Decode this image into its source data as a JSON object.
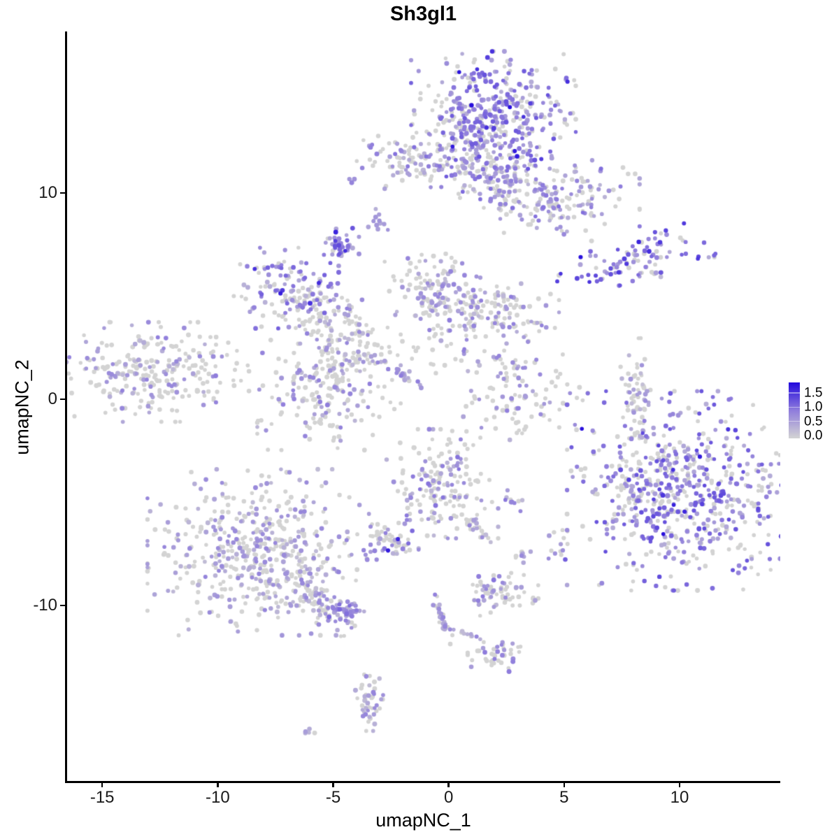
{
  "title": "Sh3gl1",
  "chart_data": {
    "type": "scatter",
    "title": "Sh3gl1",
    "xlabel": "umapNC_1",
    "ylabel": "umapNC_2",
    "xlim": [
      -16.55,
      14.36
    ],
    "ylim": [
      -18.54,
      17.83
    ],
    "x_ticks": [
      "-15",
      "-10",
      "-5",
      "0",
      "5",
      "10"
    ],
    "x_tick_values": [
      -15,
      -10,
      -5,
      0,
      5,
      10
    ],
    "y_ticks": [
      "10",
      "0",
      "-10"
    ],
    "y_tick_values": [
      10,
      0,
      -10
    ],
    "grid": false,
    "background": "#ffffff",
    "point_radius": 3,
    "seed": 42,
    "legend": {
      "position": "right",
      "labels": [
        "1.5",
        "1.0",
        "0.5",
        "0.0"
      ],
      "values": [
        1.5,
        1.0,
        0.5,
        0.0
      ],
      "bar_range": [
        -0.1,
        1.87
      ]
    },
    "colorscale": {
      "low": "#D3D3D3",
      "mid": "#8F7DDC",
      "high": "#2209DD",
      "max": 1.75
    },
    "clusters": [
      {
        "name": "top-main-core",
        "x": 1.94,
        "y": 13.76,
        "sx": 1.55,
        "sy": 1.35,
        "n": 420,
        "frac_expr": 0.68,
        "mean_expr": 0.75
      },
      {
        "name": "top-main-neck",
        "x": 1.64,
        "y": 11.05,
        "sx": 1.05,
        "sy": 0.95,
        "n": 150,
        "frac_expr": 0.55,
        "mean_expr": 0.65
      },
      {
        "name": "top-left-lobe",
        "x": -2.09,
        "y": 11.63,
        "sx": 1.15,
        "sy": 0.62,
        "n": 85,
        "frac_expr": 0.5,
        "mean_expr": 0.62
      },
      {
        "name": "top-left-bridge",
        "x": -0.33,
        "y": 11.3,
        "sx": 0.95,
        "sy": 0.22,
        "n": 25,
        "frac_expr": 0.55,
        "mean_expr": 0.6
      },
      {
        "name": "top-right-arm",
        "x": 4.82,
        "y": 9.63,
        "sx": 1.5,
        "sy": 0.85,
        "n": 170,
        "frac_expr": 0.55,
        "mean_expr": 0.62
      },
      {
        "name": "small-streak-upper",
        "x": -2.88,
        "y": 8.64,
        "sx": 0.28,
        "sy": 0.33,
        "n": 12,
        "frac_expr": 0.8,
        "mean_expr": 0.45
      },
      {
        "name": "dense-dot-cluster",
        "x": -4.64,
        "y": 7.42,
        "sx": 0.33,
        "sy": 0.38,
        "n": 40,
        "frac_expr": 0.85,
        "mean_expr": 0.8
      },
      {
        "name": "right-arrow",
        "x": 8.21,
        "y": 6.88,
        "sx": 1.6,
        "sy": 0.5,
        "n": 90,
        "angle": 0.23,
        "frac_expr": 0.78,
        "mean_expr": 0.9
      },
      {
        "name": "right-arrow-tail",
        "x": 8.7,
        "y": 5.97,
        "sx": 0.32,
        "sy": 0.26,
        "n": 8,
        "frac_expr": 0.7,
        "mean_expr": 0.5
      },
      {
        "name": "mid-left",
        "x": -7.06,
        "y": 5.39,
        "sx": 1.0,
        "sy": 0.85,
        "n": 130,
        "frac_expr": 0.6,
        "mean_expr": 0.7
      },
      {
        "name": "mid-left-branch",
        "x": -5.42,
        "y": 4.1,
        "sx": 0.8,
        "sy": 0.7,
        "n": 70,
        "frac_expr": 0.4,
        "mean_expr": 0.55
      },
      {
        "name": "center-column",
        "x": -4.12,
        "y": 2.75,
        "sx": 0.6,
        "sy": 0.9,
        "n": 55,
        "frac_expr": 0.3,
        "mean_expr": 0.5
      },
      {
        "name": "center-top",
        "x": -0.7,
        "y": 5.39,
        "sx": 0.9,
        "sy": 1.0,
        "n": 110,
        "frac_expr": 0.35,
        "mean_expr": 0.55
      },
      {
        "name": "center-right",
        "x": 1.79,
        "y": 4.17,
        "sx": 1.3,
        "sy": 0.8,
        "n": 150,
        "frac_expr": 0.4,
        "mean_expr": 0.55
      },
      {
        "name": "center-sparse",
        "x": -1.24,
        "y": 2.41,
        "sx": 1.2,
        "sy": 0.8,
        "n": 30,
        "frac_expr": 0.25,
        "mean_expr": 0.4
      },
      {
        "name": "diagonal-streak",
        "x": -2.0,
        "y": 1.15,
        "sx": 0.72,
        "sy": 0.1,
        "angle": -0.62,
        "n": 22,
        "frac_expr": 0.9,
        "mean_expr": 0.55
      },
      {
        "name": "far-left",
        "x": -12.9,
        "y": 1.32,
        "sx": 1.85,
        "sy": 1.05,
        "n": 270,
        "frac_expr": 0.28,
        "mean_expr": 0.55
      },
      {
        "name": "center-round",
        "x": -5.18,
        "y": 0.64,
        "sx": 1.35,
        "sy": 1.35,
        "n": 210,
        "frac_expr": 0.32,
        "mean_expr": 0.55
      },
      {
        "name": "crescent",
        "x": 3.15,
        "y": 0.1,
        "sx": 1.25,
        "sy": 0.9,
        "n": 95,
        "frac_expr": 0.35,
        "mean_expr": 0.6
      },
      {
        "name": "crescent-upper-dots",
        "x": 2.5,
        "y": 1.73,
        "sx": 0.4,
        "sy": 0.7,
        "n": 15,
        "frac_expr": 0.5,
        "mean_expr": 0.55
      },
      {
        "name": "right-vertical-streak",
        "x": 8.09,
        "y": 0.2,
        "sx": 0.28,
        "sy": 1.2,
        "n": 55,
        "frac_expr": 0.35,
        "mean_expr": 0.45
      },
      {
        "name": "right-big",
        "x": 10.42,
        "y": -4.44,
        "sx": 2.3,
        "sy": 2.1,
        "n": 620,
        "frac_expr": 0.62,
        "mean_expr": 0.8
      },
      {
        "name": "right-big-west-edge",
        "x": 8.0,
        "y": -4.5,
        "sx": 0.5,
        "sy": 1.15,
        "n": 45,
        "frac_expr": 0.3,
        "mean_expr": 0.5
      },
      {
        "name": "small-right-mid",
        "x": 4.82,
        "y": -7.08,
        "sx": 0.28,
        "sy": 0.5,
        "n": 14,
        "frac_expr": 0.5,
        "mean_expr": 0.7
      },
      {
        "name": "bottom-left-big",
        "x": -8.21,
        "y": -7.42,
        "sx": 2.1,
        "sy": 1.75,
        "n": 520,
        "frac_expr": 0.45,
        "mean_expr": 0.5
      },
      {
        "name": "bottom-left-tail",
        "x": -5.64,
        "y": -9.8,
        "sx": 0.85,
        "sy": 0.28,
        "angle": -0.75,
        "n": 80,
        "frac_expr": 0.45,
        "mean_expr": 0.5
      },
      {
        "name": "tail-end-blob",
        "x": -4.36,
        "y": -10.34,
        "sx": 0.38,
        "sy": 0.28,
        "n": 40,
        "frac_expr": 0.8,
        "mean_expr": 0.65
      },
      {
        "name": "small-dense-left",
        "x": -2.45,
        "y": -6.81,
        "sx": 0.5,
        "sy": 0.42,
        "n": 55,
        "frac_expr": 0.5,
        "mean_expr": 0.7
      },
      {
        "name": "bottom-center-teardrop",
        "x": -0.27,
        "y": -4.1,
        "sx": 1.05,
        "sy": 1.15,
        "n": 170,
        "frac_expr": 0.35,
        "mean_expr": 0.6
      },
      {
        "name": "teardrop-tail",
        "x": 1.0,
        "y": -6.07,
        "sx": 0.6,
        "sy": 0.14,
        "angle": -0.83,
        "n": 25,
        "frac_expr": 0.3,
        "mean_expr": 0.5
      },
      {
        "name": "tiny-blob-center",
        "x": 2.79,
        "y": -4.92,
        "sx": 0.22,
        "sy": 0.22,
        "n": 10,
        "frac_expr": 0.75,
        "mean_expr": 0.6
      },
      {
        "name": "tiny-dots-right",
        "x": 3.18,
        "y": -7.59,
        "sx": 0.18,
        "sy": 0.32,
        "n": 8,
        "frac_expr": 0.6,
        "mean_expr": 0.6
      },
      {
        "name": "bottom-mid-cluster",
        "x": 2.27,
        "y": -9.46,
        "sx": 0.7,
        "sy": 0.45,
        "n": 70,
        "frac_expr": 0.35,
        "mean_expr": 0.6
      },
      {
        "name": "bottom-chain",
        "x": -0.33,
        "y": -10.47,
        "sx": 0.95,
        "sy": 0.09,
        "angle": -1.29,
        "n": 30,
        "frac_expr": 0.5,
        "mean_expr": 0.55
      },
      {
        "name": "bottom-chain-branch",
        "x": 0.88,
        "y": -11.42,
        "sx": 0.5,
        "sy": 0.08,
        "angle": -0.38,
        "n": 12,
        "frac_expr": 0.5,
        "mean_expr": 0.55
      },
      {
        "name": "bottom-small-cluster",
        "x": 2.09,
        "y": -12.44,
        "sx": 0.55,
        "sy": 0.33,
        "n": 45,
        "frac_expr": 0.4,
        "mean_expr": 0.6
      },
      {
        "name": "bottom-s-cluster",
        "x": -3.45,
        "y": -14.47,
        "sx": 0.28,
        "sy": 0.7,
        "n": 45,
        "frac_expr": 0.6,
        "mean_expr": 0.5
      },
      {
        "name": "bottom-tiny-pair",
        "x": -6.12,
        "y": -16.1,
        "sx": 0.14,
        "sy": 0.1,
        "n": 5,
        "frac_expr": 0.8,
        "mean_expr": 0.4
      },
      {
        "name": "lone-dots-mid",
        "x": 7.9,
        "y": -1.93,
        "sx": 0.1,
        "sy": 0.1,
        "n": 2,
        "frac_expr": 0.0,
        "mean_expr": 0.0
      }
    ]
  }
}
